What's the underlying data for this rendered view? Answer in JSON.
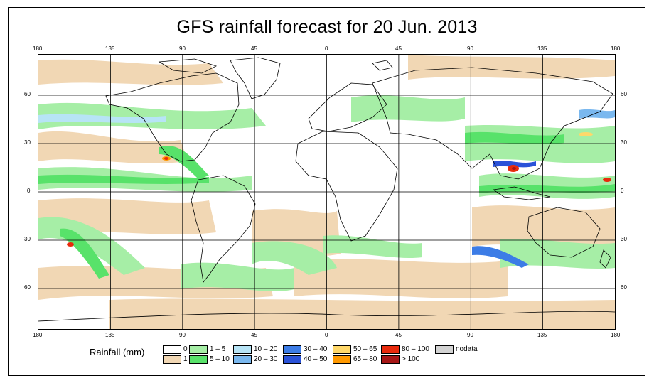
{
  "title": "GFS rainfall forecast for 20 Jun. 2013",
  "axes": {
    "lon_top": [
      "180",
      "135",
      "90",
      "45",
      "0",
      "45",
      "90",
      "135",
      "180"
    ],
    "lon_bottom": [
      "180",
      "135",
      "90",
      "45",
      "0",
      "45",
      "90",
      "135",
      "180"
    ],
    "lat_left": [
      "60",
      "30",
      "0",
      "30",
      "60"
    ],
    "lat_right": [
      "60",
      "30",
      "0",
      "30",
      "60"
    ]
  },
  "legend": {
    "title": "Rainfall (mm)",
    "items": [
      {
        "label": "0",
        "color": "#ffffff"
      },
      {
        "label": "1",
        "color": "#f1d7b4"
      },
      {
        "label": "1 – 5",
        "color": "#a6eea6"
      },
      {
        "label": "5 – 10",
        "color": "#58e26a"
      },
      {
        "label": "10 – 20",
        "color": "#b7e4f6"
      },
      {
        "label": "20 – 30",
        "color": "#7ab8ef"
      },
      {
        "label": "30 – 40",
        "color": "#3c7ce6"
      },
      {
        "label": "40 – 50",
        "color": "#2a52d8"
      },
      {
        "label": "50 – 65",
        "color": "#ffd86a"
      },
      {
        "label": "65 – 80",
        "color": "#ff9900"
      },
      {
        "label": "80 – 100",
        "color": "#e82a0c"
      },
      {
        "label": "> 100",
        "color": "#a61616"
      },
      {
        "label": "nodata",
        "color": "#d3d3d3"
      }
    ]
  }
}
